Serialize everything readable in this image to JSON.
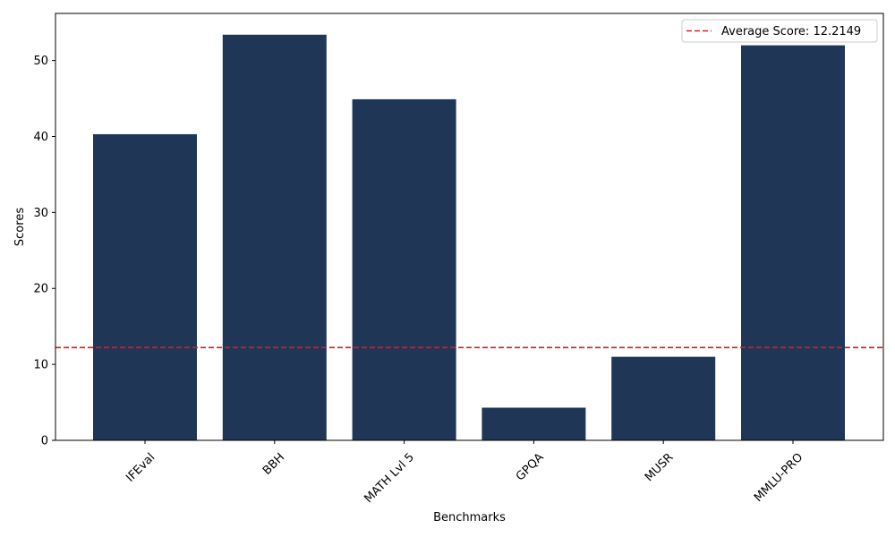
{
  "chart_data": {
    "type": "bar",
    "categories": [
      "IFEval",
      "BBH",
      "MATH Lvl 5",
      "GPQA",
      "MUSR",
      "MMLU-PRO"
    ],
    "series": [
      {
        "values": [
          40.3,
          53.4,
          44.9,
          4.3,
          11.0,
          52.0
        ]
      }
    ],
    "xlabel": "Benchmarks",
    "ylabel": "Scores",
    "ylim": [
      0,
      56.2
    ],
    "yticks": [
      0,
      10,
      20,
      30,
      40,
      50
    ],
    "reference_line": {
      "label": "Average Score: 12.2149",
      "value": 12.2149,
      "style": "dashed"
    },
    "legend_position": "top-right",
    "grid": false,
    "x_tick_rotation_deg": 45
  },
  "colors": {
    "bar": "#1f3657",
    "reference_line": "#e31a1c",
    "axis": "#000000"
  }
}
